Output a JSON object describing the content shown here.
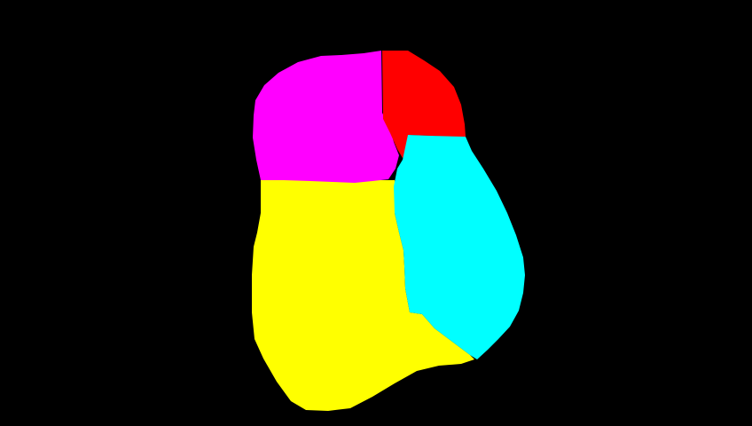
{
  "background_color": "#000000",
  "regions": [
    {
      "id": "magenta",
      "color": "#ff00ff"
    },
    {
      "id": "red",
      "color": "#ff0000"
    },
    {
      "id": "cyan",
      "color": "#00ffff"
    },
    {
      "id": "yellow",
      "color": "#ffff00"
    }
  ]
}
